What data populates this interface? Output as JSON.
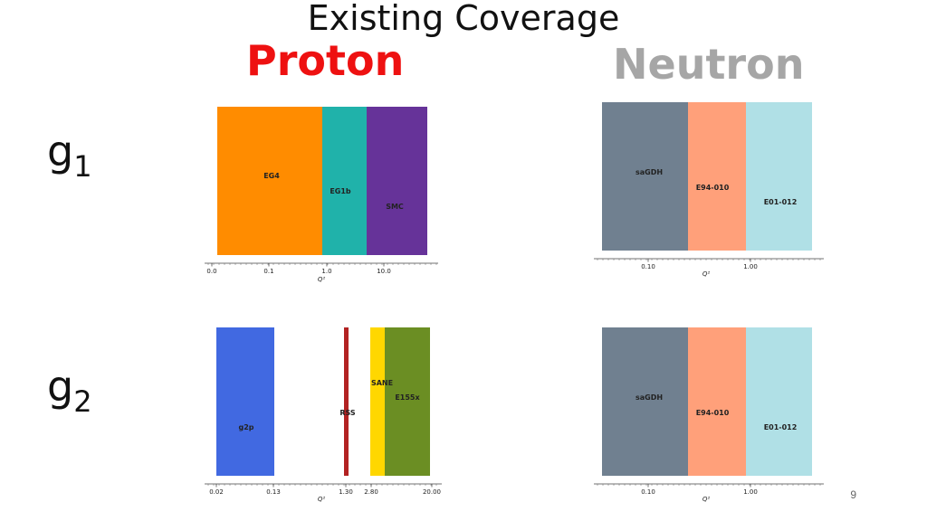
{
  "title": "Existing Coverage",
  "columns": {
    "proton": {
      "label": "Proton",
      "color": "#ee1111"
    },
    "neutron": {
      "label": "Neutron",
      "color": "#a6a6a6"
    }
  },
  "rows": [
    {
      "base": "g",
      "sub": "1"
    },
    {
      "base": "g",
      "sub": "2"
    }
  ],
  "page_number": "9",
  "chart_data": [
    {
      "type": "bar",
      "subtype": "range-coverage",
      "panel": "g1-proton",
      "xlabel": "Q²",
      "xticks": [
        "0.0",
        "0.1",
        "1.0",
        "10.0"
      ],
      "segments": [
        {
          "name": "EG4",
          "x0": 0.0,
          "x1": 0.84,
          "color": "#ff8c00"
        },
        {
          "name": "EG1b",
          "x0": 0.84,
          "x1": 5.0,
          "color": "#20b2aa"
        },
        {
          "name": "SMC",
          "x0": 5.0,
          "x1": 60.0,
          "color": "#663399"
        }
      ]
    },
    {
      "type": "bar",
      "subtype": "range-coverage",
      "panel": "g1-neutron",
      "xlabel": "Q²",
      "xticks": [
        "0.10",
        "1.00"
      ],
      "segments": [
        {
          "name": "saGDH",
          "x0": 0.035,
          "x1": 0.24,
          "color": "#708090"
        },
        {
          "name": "E94-010",
          "x0": 0.24,
          "x1": 0.9,
          "color": "#ffa07a"
        },
        {
          "name": "E01-012",
          "x0": 0.9,
          "x1": 5.0,
          "color": "#b0e0e6"
        }
      ]
    },
    {
      "type": "bar",
      "subtype": "range-coverage",
      "panel": "g2-proton",
      "xlabel": "Q²",
      "xticks": [
        "0.02",
        "0.13",
        "1.30",
        "2.80",
        "20.00"
      ],
      "segments": [
        {
          "name": "g2p",
          "x0": 0.02,
          "x1": 0.13,
          "color": "#4169e1"
        },
        {
          "name": "RSS",
          "x0": 1.27,
          "x1": 1.33,
          "color": "#b22222"
        },
        {
          "name": "SANE",
          "x0": 2.5,
          "x1": 3.9,
          "color": "#ffd700"
        },
        {
          "name": "E155x",
          "x0": 3.9,
          "x1": 20.0,
          "color": "#6b8e23"
        }
      ]
    },
    {
      "type": "bar",
      "subtype": "range-coverage",
      "panel": "g2-neutron",
      "xlabel": "Q²",
      "xticks": [
        "0.10",
        "1.00"
      ],
      "segments": [
        {
          "name": "saGDH",
          "x0": 0.035,
          "x1": 0.24,
          "color": "#708090"
        },
        {
          "name": "E94-010",
          "x0": 0.24,
          "x1": 0.9,
          "color": "#ffa07a"
        },
        {
          "name": "E01-012",
          "x0": 0.9,
          "x1": 5.0,
          "color": "#b0e0e6"
        }
      ]
    }
  ]
}
